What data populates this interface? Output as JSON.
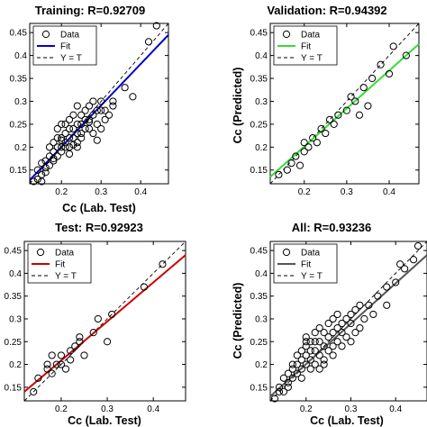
{
  "chart_data": [
    {
      "type": "scatter",
      "title": "Training: R=0.92709",
      "xlabel": "Cc (Lab. Test)",
      "ylabel": "",
      "xlim": [
        0.12,
        0.47
      ],
      "ylim": [
        0.12,
        0.47
      ],
      "xticks": [
        "0.2",
        "0.3",
        "0.4"
      ],
      "yticks": [
        "0.15",
        "0.2",
        "0.25",
        "0.3",
        "0.35",
        "0.4",
        "0.45"
      ],
      "legend": [
        "Data",
        "Fit",
        "Y = T"
      ],
      "legend_position": "top-left",
      "fit_color": "#0000cc",
      "fit_line": [
        [
          0.12,
          0.128
        ],
        [
          0.47,
          0.445
        ]
      ],
      "x": [
        0.13,
        0.14,
        0.14,
        0.15,
        0.15,
        0.16,
        0.16,
        0.17,
        0.17,
        0.17,
        0.18,
        0.18,
        0.18,
        0.19,
        0.19,
        0.19,
        0.2,
        0.2,
        0.2,
        0.2,
        0.21,
        0.21,
        0.21,
        0.21,
        0.22,
        0.22,
        0.22,
        0.22,
        0.23,
        0.23,
        0.23,
        0.24,
        0.24,
        0.24,
        0.24,
        0.25,
        0.25,
        0.25,
        0.26,
        0.26,
        0.26,
        0.27,
        0.27,
        0.27,
        0.28,
        0.28,
        0.28,
        0.29,
        0.29,
        0.3,
        0.3,
        0.3,
        0.31,
        0.31,
        0.32,
        0.33,
        0.33,
        0.36,
        0.38,
        0.42,
        0.44,
        0.2,
        0.22,
        0.24,
        0.16,
        0.19,
        0.23,
        0.27,
        0.15,
        0.18,
        0.25,
        0.29
      ],
      "y": [
        0.125,
        0.13,
        0.15,
        0.14,
        0.165,
        0.155,
        0.17,
        0.16,
        0.18,
        0.2,
        0.17,
        0.19,
        0.21,
        0.18,
        0.2,
        0.22,
        0.19,
        0.2,
        0.22,
        0.25,
        0.2,
        0.21,
        0.23,
        0.25,
        0.2,
        0.22,
        0.24,
        0.26,
        0.22,
        0.24,
        0.27,
        0.2,
        0.23,
        0.25,
        0.29,
        0.23,
        0.25,
        0.27,
        0.24,
        0.26,
        0.28,
        0.24,
        0.26,
        0.29,
        0.23,
        0.27,
        0.3,
        0.25,
        0.28,
        0.24,
        0.28,
        0.3,
        0.26,
        0.28,
        0.27,
        0.29,
        0.3,
        0.33,
        0.31,
        0.43,
        0.465,
        0.215,
        0.185,
        0.21,
        0.145,
        0.24,
        0.205,
        0.255,
        0.125,
        0.175,
        0.22,
        0.215
      ]
    },
    {
      "type": "scatter",
      "title": "Validation: R=0.94392",
      "xlabel": "",
      "ylabel": "Cc (Predicted)",
      "xlim": [
        0.12,
        0.47
      ],
      "ylim": [
        0.12,
        0.47
      ],
      "xticks": [
        "0.2",
        "0.3",
        "0.4"
      ],
      "yticks": [
        "0.15",
        "0.2",
        "0.25",
        "0.3",
        "0.35",
        "0.4",
        "0.45"
      ],
      "legend": [
        "Data",
        "Fit",
        "Y = T"
      ],
      "legend_position": "top-left",
      "fit_color": "#33dd33",
      "fit_line": [
        [
          0.12,
          0.135
        ],
        [
          0.47,
          0.425
        ]
      ],
      "x": [
        0.14,
        0.16,
        0.17,
        0.18,
        0.19,
        0.2,
        0.2,
        0.21,
        0.22,
        0.23,
        0.24,
        0.25,
        0.26,
        0.27,
        0.28,
        0.3,
        0.31,
        0.32,
        0.33,
        0.34,
        0.35,
        0.36,
        0.38,
        0.4,
        0.41,
        0.44
      ],
      "y": [
        0.14,
        0.15,
        0.165,
        0.18,
        0.16,
        0.19,
        0.21,
        0.2,
        0.22,
        0.21,
        0.24,
        0.23,
        0.26,
        0.25,
        0.27,
        0.28,
        0.31,
        0.3,
        0.27,
        0.33,
        0.29,
        0.35,
        0.38,
        0.36,
        0.42,
        0.4
      ]
    },
    {
      "type": "scatter",
      "title": "Test: R=0.92923",
      "xlabel": "Cc (Lab. Test)",
      "ylabel": "",
      "xlim": [
        0.12,
        0.47
      ],
      "ylim": [
        0.12,
        0.47
      ],
      "xticks": [
        "0.2",
        "0.3",
        "0.4"
      ],
      "yticks": [
        "0.15",
        "0.2",
        "0.25",
        "0.3",
        "0.35",
        "0.4",
        "0.45"
      ],
      "legend": [
        "Data",
        "Fit",
        "Y = T"
      ],
      "legend_position": "top-left",
      "fit_color": "#cc0000",
      "fit_line": [
        [
          0.12,
          0.14
        ],
        [
          0.47,
          0.44
        ]
      ],
      "x": [
        0.14,
        0.15,
        0.17,
        0.18,
        0.18,
        0.2,
        0.2,
        0.21,
        0.22,
        0.22,
        0.23,
        0.24,
        0.25,
        0.27,
        0.28,
        0.3,
        0.31,
        0.38,
        0.42,
        0.17,
        0.19,
        0.24
      ],
      "y": [
        0.14,
        0.17,
        0.19,
        0.22,
        0.18,
        0.2,
        0.22,
        0.19,
        0.21,
        0.23,
        0.24,
        0.26,
        0.22,
        0.27,
        0.3,
        0.25,
        0.31,
        0.37,
        0.42,
        0.2,
        0.2,
        0.25
      ]
    },
    {
      "type": "scatter",
      "title": "All: R=0.93236",
      "xlabel": "Cc (Lab. Test)",
      "ylabel": "Cc (Predicted)",
      "xlim": [
        0.12,
        0.47
      ],
      "ylim": [
        0.12,
        0.47
      ],
      "xticks": [
        "0.2",
        "0.3",
        "0.4"
      ],
      "yticks": [
        "0.15",
        "0.2",
        "0.25",
        "0.3",
        "0.35",
        "0.4",
        "0.45"
      ],
      "legend": [
        "Data",
        "Fit",
        "Y = T"
      ],
      "legend_position": "top-left",
      "fit_color": "#555555",
      "fit_line": [
        [
          0.12,
          0.13
        ],
        [
          0.47,
          0.44
        ]
      ],
      "x": [
        0.13,
        0.14,
        0.14,
        0.15,
        0.15,
        0.16,
        0.16,
        0.17,
        0.17,
        0.18,
        0.18,
        0.18,
        0.19,
        0.19,
        0.19,
        0.2,
        0.2,
        0.2,
        0.2,
        0.21,
        0.21,
        0.21,
        0.22,
        0.22,
        0.22,
        0.22,
        0.23,
        0.23,
        0.23,
        0.24,
        0.24,
        0.24,
        0.25,
        0.25,
        0.25,
        0.26,
        0.26,
        0.26,
        0.27,
        0.27,
        0.27,
        0.28,
        0.28,
        0.29,
        0.29,
        0.3,
        0.3,
        0.3,
        0.31,
        0.31,
        0.32,
        0.32,
        0.33,
        0.34,
        0.35,
        0.36,
        0.38,
        0.38,
        0.4,
        0.41,
        0.42,
        0.44,
        0.45,
        0.17,
        0.2,
        0.23,
        0.16,
        0.19,
        0.24,
        0.28,
        0.21,
        0.26
      ],
      "y": [
        0.125,
        0.14,
        0.15,
        0.14,
        0.17,
        0.16,
        0.18,
        0.17,
        0.2,
        0.18,
        0.2,
        0.22,
        0.19,
        0.21,
        0.23,
        0.2,
        0.22,
        0.24,
        0.26,
        0.21,
        0.23,
        0.25,
        0.2,
        0.23,
        0.25,
        0.27,
        0.22,
        0.25,
        0.28,
        0.21,
        0.24,
        0.27,
        0.23,
        0.26,
        0.29,
        0.24,
        0.27,
        0.3,
        0.25,
        0.28,
        0.31,
        0.24,
        0.29,
        0.26,
        0.3,
        0.25,
        0.29,
        0.31,
        0.27,
        0.32,
        0.28,
        0.33,
        0.3,
        0.33,
        0.31,
        0.35,
        0.37,
        0.33,
        0.38,
        0.42,
        0.41,
        0.43,
        0.46,
        0.19,
        0.25,
        0.19,
        0.15,
        0.17,
        0.2,
        0.27,
        0.19,
        0.22
      ]
    }
  ]
}
